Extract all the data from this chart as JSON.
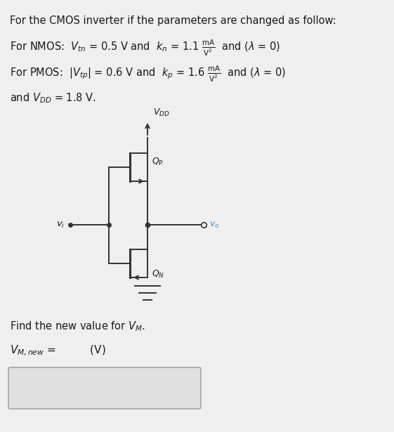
{
  "bg_color": "#f0efef",
  "text_color": "#1a1a1a",
  "circuit_color": "#333333",
  "box_color": "#e0e0e0",
  "box_border": "#999999",
  "title": "For the CMOS inverter if the parameters are changed as follow:",
  "line_nmos": "For NMOS:  $V_{tn}$ = 0.5 V and  $k_n$ = 1.1 $\\frac{\\mathrm{mA}}{\\mathrm{V}^2}$  and ($\\lambda$ = 0)",
  "line_pmos": "For PMOS:  $|V_{tp}|$ = 0.6 V and  $k_p$ = 1.6 $\\frac{\\mathrm{mA}}{\\mathrm{V}^2}$  and ($\\lambda$ = 0)",
  "line_vdd": "and $V_{DD}$ = 1.8 V.",
  "line_find": "Find the new value for $V_M$.",
  "line_vm": "$V_{M, new}$ =          (V)"
}
